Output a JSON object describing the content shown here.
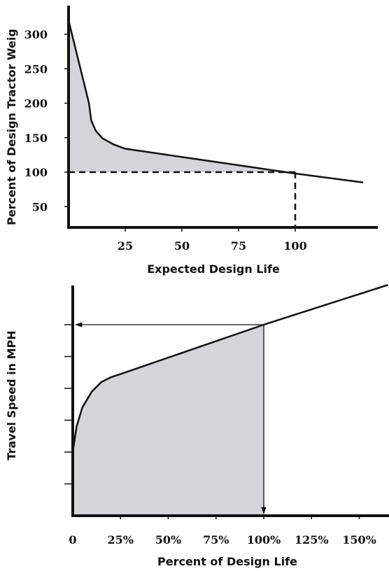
{
  "chart_data": [
    {
      "type": "line",
      "xlabel": "Expected Design Life",
      "ylabel": "Percent of Design Tractor Weig",
      "x_ticks": [
        "25",
        "50",
        "75",
        "100"
      ],
      "y_ticks": [
        "50",
        "100",
        "150",
        "200",
        "250",
        "300"
      ],
      "xlim": [
        0,
        135
      ],
      "ylim": [
        25,
        335
      ],
      "series": [
        {
          "points": [
            [
              0,
              320
            ],
            [
              3,
              280
            ],
            [
              6,
              240
            ],
            [
              9,
              200
            ],
            [
              10,
              175
            ],
            [
              12,
              160
            ],
            [
              15,
              149
            ],
            [
              20,
              140
            ],
            [
              25,
              134
            ],
            [
              50,
              122
            ],
            [
              75,
              110
            ],
            [
              100,
              98
            ],
            [
              130,
              85
            ]
          ]
        }
      ],
      "shaded_above": 100,
      "reference": {
        "x": 100,
        "y": 100,
        "style": "dashed"
      }
    },
    {
      "type": "line",
      "xlabel": "Percent of Design Life",
      "ylabel": "Travel Speed in MPH",
      "x_ticks": [
        "0",
        "25%",
        "50%",
        "75%",
        "100%",
        "125%",
        "150%"
      ],
      "y_ticks": [
        "",
        "",
        "",
        "",
        "",
        ""
      ],
      "xlim": [
        0,
        165
      ],
      "ylim": [
        0,
        7.5
      ],
      "series": [
        {
          "points": [
            [
              0,
              2.0
            ],
            [
              2,
              2.8
            ],
            [
              5,
              3.4
            ],
            [
              10,
              3.9
            ],
            [
              15,
              4.2
            ],
            [
              20,
              4.35
            ],
            [
              25,
              4.45
            ],
            [
              100,
              6.0
            ],
            [
              165,
              7.25
            ]
          ]
        }
      ],
      "shaded_to": 100,
      "reference": {
        "x": 100,
        "y": 6.0,
        "style": "arrows"
      }
    }
  ]
}
